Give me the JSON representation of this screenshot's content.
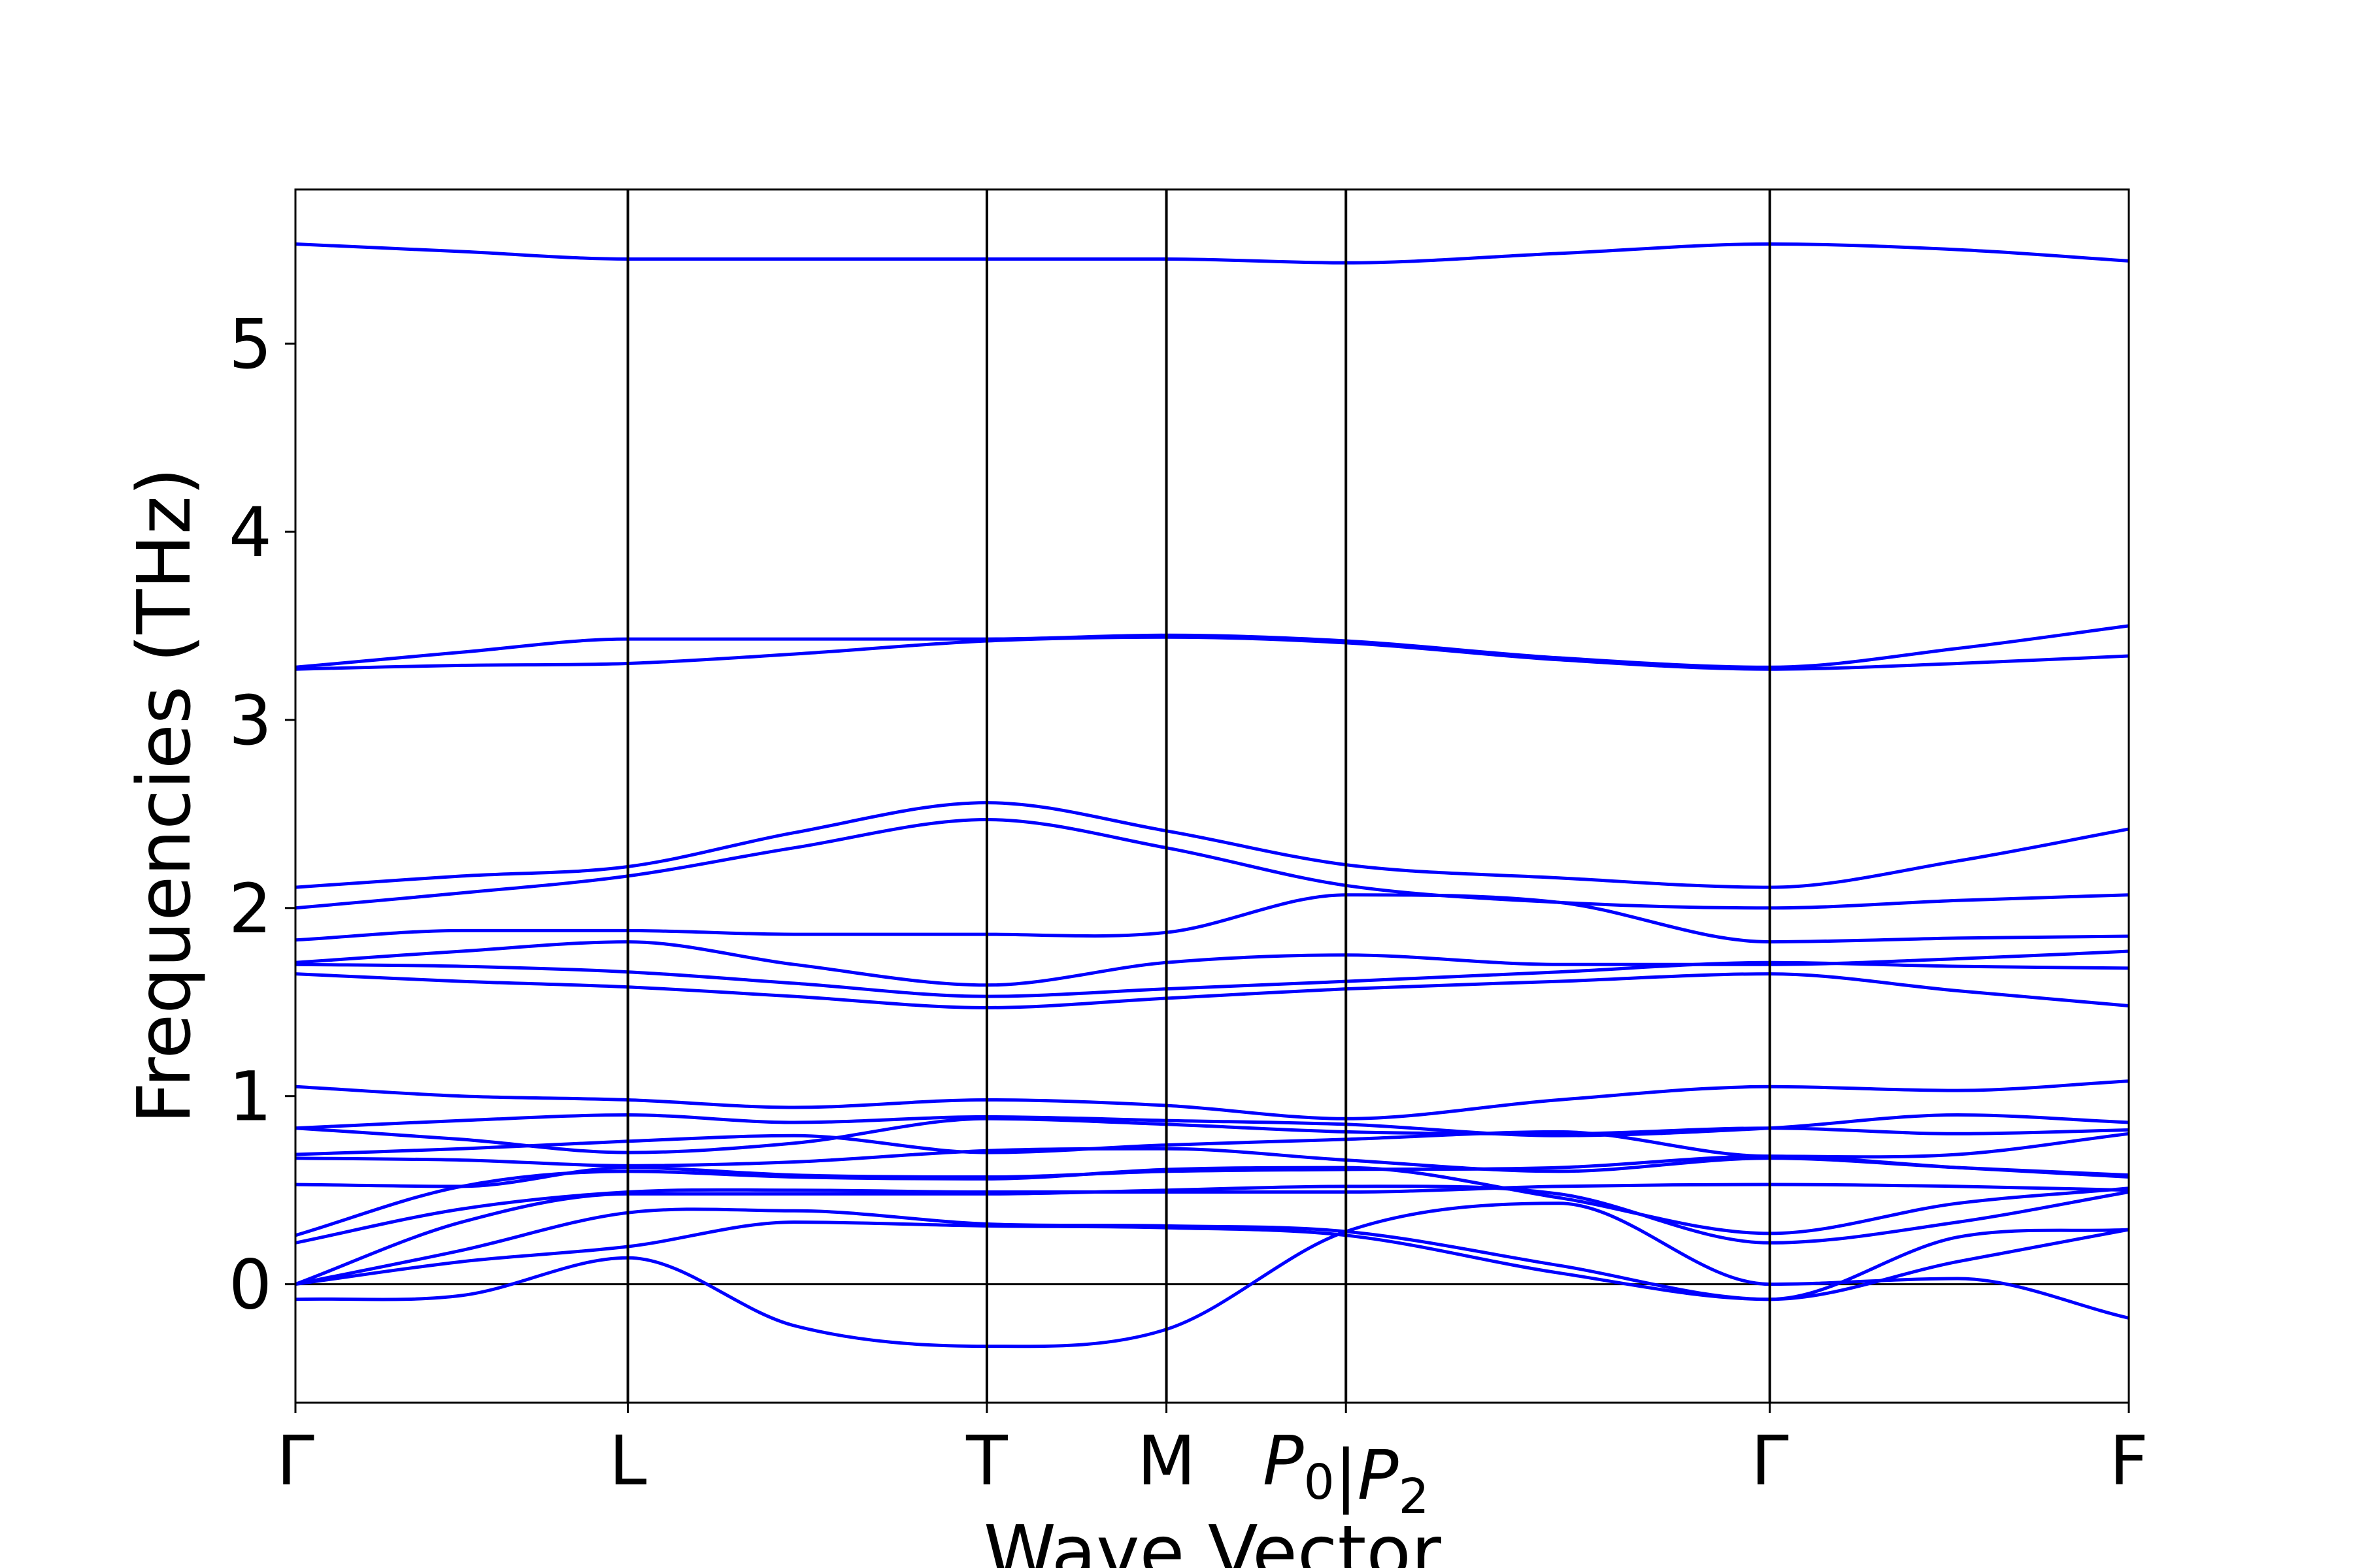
{
  "chart_data": {
    "type": "line",
    "xlabel": "Wave Vector",
    "ylabel": "Frequencies (THz)",
    "ylim": [
      -0.63,
      5.82
    ],
    "yticks": [
      0,
      1,
      2,
      3,
      4,
      5
    ],
    "grid": false,
    "legend": "none",
    "line_color": "#0000ff",
    "xticks": [
      {
        "label": "Γ",
        "pos": 0.0
      },
      {
        "label": "L",
        "pos": 1.0
      },
      {
        "label": "T",
        "pos": 2.08
      },
      {
        "label": "M",
        "pos": 2.62
      },
      {
        "label": "P0|P2",
        "label_main": "P",
        "sub_a": "0",
        "sep": "|",
        "label_main_b": "P",
        "sub_b": "2",
        "pos": 3.16
      },
      {
        "label": "Γ",
        "pos": 4.435
      },
      {
        "label": "F",
        "pos": 5.515
      }
    ],
    "x": [
      0,
      0.5,
      1.0,
      1.5,
      2.08,
      2.62,
      3.16,
      3.8,
      4.435,
      5.0,
      5.515
    ],
    "series": [
      {
        "values": [
          5.53,
          5.49,
          5.45,
          5.45,
          5.45,
          5.45,
          5.43,
          5.48,
          5.53,
          5.5,
          5.44
        ]
      },
      {
        "values": [
          3.28,
          3.36,
          3.43,
          3.43,
          3.43,
          3.45,
          3.42,
          3.33,
          3.28,
          3.38,
          3.5
        ]
      },
      {
        "values": [
          3.27,
          3.29,
          3.3,
          3.35,
          3.42,
          3.44,
          3.41,
          3.32,
          3.27,
          3.3,
          3.34
        ]
      },
      {
        "values": [
          2.11,
          2.17,
          2.22,
          2.4,
          2.56,
          2.41,
          2.23,
          2.16,
          2.11,
          2.25,
          2.42
        ]
      },
      {
        "values": [
          2.0,
          2.08,
          2.17,
          2.32,
          2.47,
          2.32,
          2.12,
          2.03,
          2.0,
          2.04,
          2.07
        ]
      },
      {
        "values": [
          1.83,
          1.88,
          1.88,
          1.86,
          1.86,
          1.87,
          2.07,
          2.03,
          1.82,
          1.84,
          1.85
        ]
      },
      {
        "values": [
          1.71,
          1.77,
          1.82,
          1.7,
          1.59,
          1.71,
          1.75,
          1.7,
          1.7,
          1.73,
          1.77
        ]
      },
      {
        "values": [
          1.7,
          1.69,
          1.66,
          1.6,
          1.53,
          1.57,
          1.61,
          1.66,
          1.71,
          1.69,
          1.68
        ]
      },
      {
        "values": [
          1.65,
          1.61,
          1.58,
          1.53,
          1.47,
          1.52,
          1.57,
          1.61,
          1.65,
          1.56,
          1.48
        ]
      },
      {
        "values": [
          1.05,
          1.0,
          0.98,
          0.94,
          0.98,
          0.95,
          0.88,
          0.98,
          1.05,
          1.03,
          1.08
        ]
      },
      {
        "values": [
          0.83,
          0.87,
          0.9,
          0.86,
          0.89,
          0.87,
          0.85,
          0.79,
          0.83,
          0.9,
          0.86
        ]
      },
      {
        "values": [
          0.83,
          0.77,
          0.7,
          0.75,
          0.88,
          0.85,
          0.81,
          0.8,
          0.83,
          0.8,
          0.82
        ]
      },
      {
        "values": [
          0.69,
          0.72,
          0.76,
          0.79,
          0.7,
          0.74,
          0.77,
          0.81,
          0.68,
          0.69,
          0.8
        ]
      },
      {
        "values": [
          0.67,
          0.66,
          0.63,
          0.65,
          0.71,
          0.72,
          0.66,
          0.6,
          0.67,
          0.62,
          0.58
        ]
      },
      {
        "values": [
          0.53,
          0.52,
          0.62,
          0.58,
          0.57,
          0.6,
          0.61,
          0.62,
          0.68,
          0.62,
          0.57
        ]
      },
      {
        "values": [
          0.26,
          0.52,
          0.6,
          0.57,
          0.56,
          0.61,
          0.62,
          0.46,
          0.27,
          0.43,
          0.51
        ]
      },
      {
        "values": [
          0.22,
          0.4,
          0.49,
          0.5,
          0.49,
          0.49,
          0.49,
          0.52,
          0.53,
          0.52,
          0.5
        ]
      },
      {
        "values": [
          0.0,
          0.33,
          0.48,
          0.48,
          0.48,
          0.5,
          0.52,
          0.48,
          0.22,
          0.33,
          0.49
        ]
      },
      {
        "values": [
          0.0,
          0.18,
          0.38,
          0.39,
          0.32,
          0.31,
          0.28,
          0.1,
          -0.08,
          0.25,
          0.29
        ]
      },
      {
        "values": [
          0.0,
          0.12,
          0.2,
          0.33,
          0.31,
          0.3,
          0.26,
          0.06,
          -0.08,
          0.12,
          0.29
        ]
      },
      {
        "values": [
          -0.08,
          -0.06,
          0.14,
          -0.22,
          -0.33,
          -0.24,
          0.28,
          0.43,
          0.0,
          0.03,
          -0.18
        ]
      }
    ]
  }
}
